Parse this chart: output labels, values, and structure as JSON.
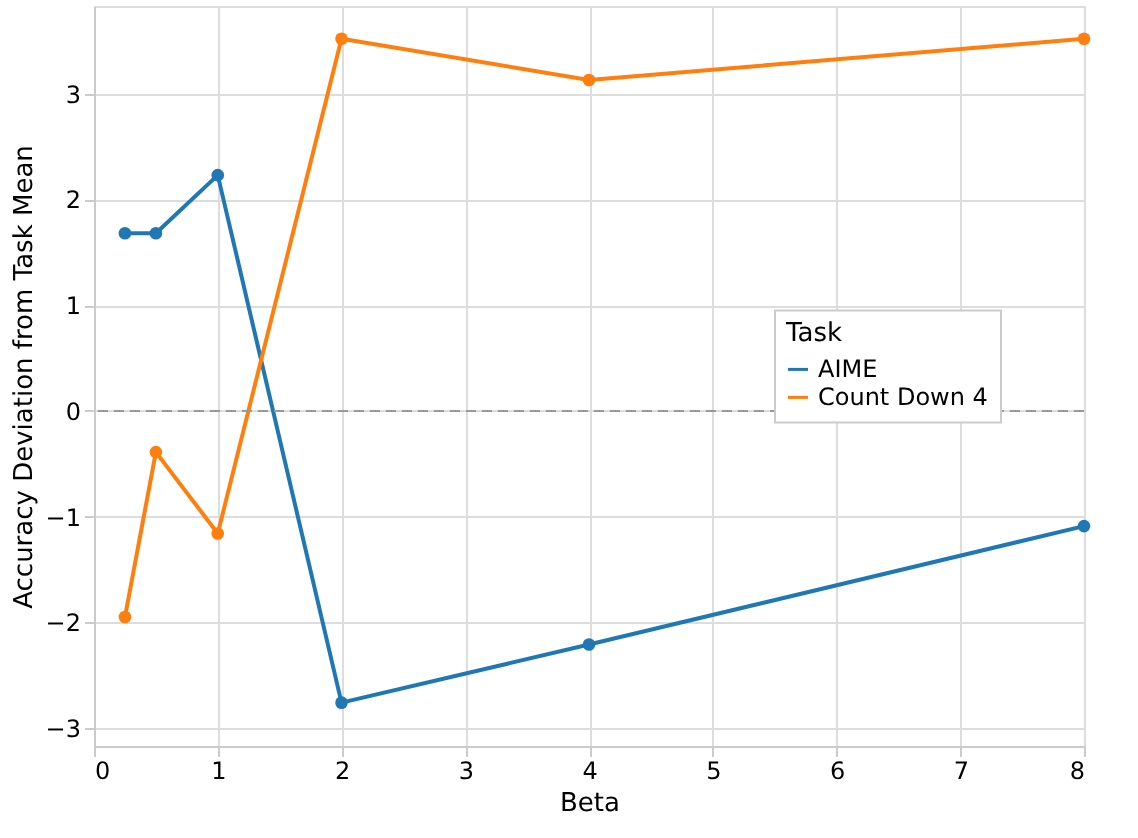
{
  "chart_data": {
    "type": "line",
    "xlabel": "Beta",
    "ylabel": "Accuracy Deviation from Task Mean",
    "legend_title": "Task",
    "legend": "right",
    "grid": true,
    "marker": "circle",
    "line_style": "solid",
    "x": [
      0.25,
      0.5,
      1,
      2,
      4,
      8
    ],
    "xlim": [
      0,
      8
    ],
    "xticks": [
      0,
      1,
      2,
      3,
      4,
      5,
      6,
      7,
      8
    ],
    "ylim": [
      -3.17,
      3.83
    ],
    "yticks": [
      -3,
      -2,
      -1,
      0,
      1,
      2,
      3
    ],
    "series": [
      {
        "name": "AIME",
        "color": "#1f77b4",
        "values": [
          1.68,
          1.68,
          2.23,
          -2.76,
          -2.21,
          -1.09
        ]
      },
      {
        "name": "Count Down 4",
        "color": "#ff7f0e",
        "values": [
          -1.95,
          -0.39,
          -1.16,
          3.52,
          3.13,
          3.52
        ]
      }
    ],
    "ref_lines": [
      {
        "axis": "y",
        "value": 0,
        "label": null,
        "color": "#999999",
        "line_style": "dashed"
      }
    ]
  }
}
